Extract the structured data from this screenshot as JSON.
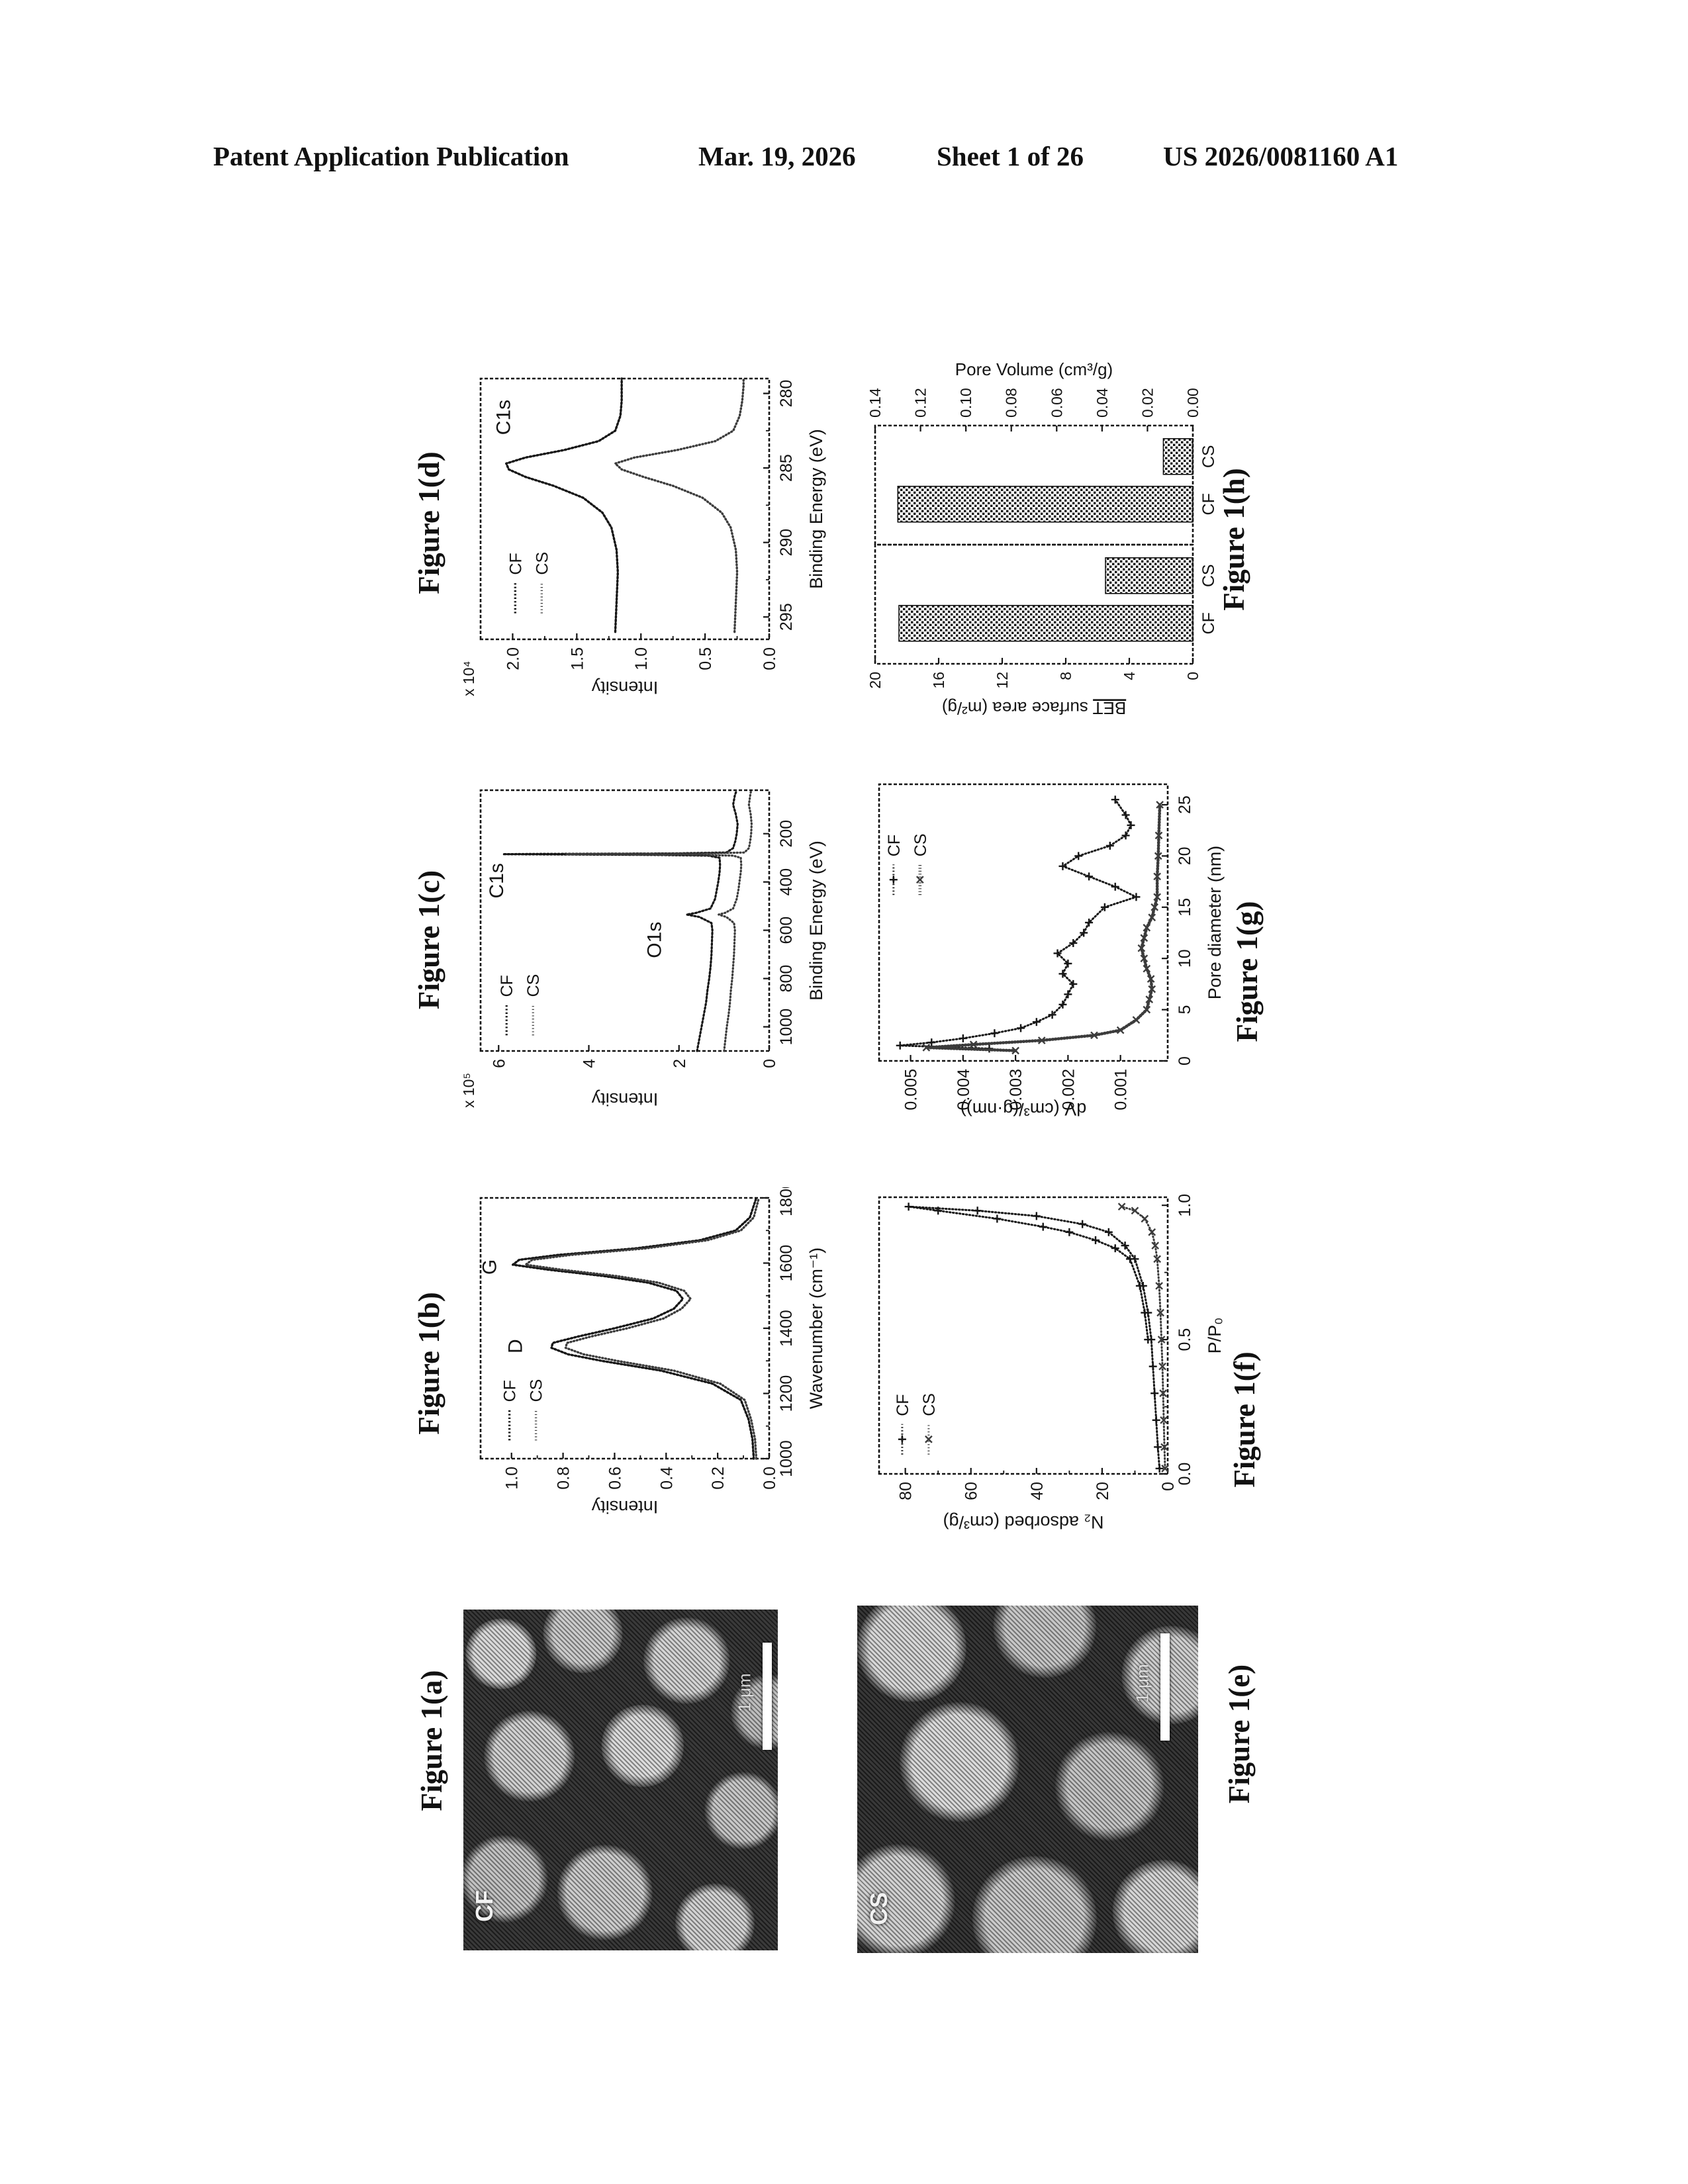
{
  "header": {
    "left": "Patent Application Publication",
    "date": "Mar. 19, 2026",
    "sheet": "Sheet 1 of 26",
    "patent_no": "US 2026/0081160 A1"
  },
  "captions": {
    "a": "Figure 1(a)",
    "b": "Figure 1(b)",
    "c": "Figure 1(c)",
    "d": "Figure 1(d)",
    "e": "Figure 1(e)",
    "f": "Figure 1(f)",
    "g": "Figure 1(g)",
    "h": "Figure 1(h)"
  },
  "sem": {
    "a": {
      "label": "CF",
      "scalebar": "1 μm"
    },
    "e": {
      "label": "CS",
      "scalebar": "1 μm"
    }
  },
  "ink": "#141414",
  "chart_data": [
    {
      "id": "figure-1b",
      "type": "line",
      "xlabel": "Wavenumber (cm⁻¹)",
      "ylabel": "Intensity",
      "xlim": [
        1000,
        1800
      ],
      "ylim": [
        0,
        1.12
      ],
      "x_reversed": false,
      "x_ticks": [
        [
          1000,
          "1000"
        ],
        [
          1200,
          "1200"
        ],
        [
          1400,
          "1400"
        ],
        [
          1600,
          "1600"
        ],
        [
          1800,
          "1800"
        ]
      ],
      "y_ticks": [
        [
          0,
          "0.0"
        ],
        [
          0.2,
          "0.2"
        ],
        [
          0.4,
          "0.4"
        ],
        [
          0.6,
          "0.6"
        ],
        [
          0.8,
          "0.8"
        ],
        [
          1.0,
          "1.0"
        ]
      ],
      "x_minor": true,
      "y_minor": true,
      "scale_label": "",
      "legend": {
        "x": 0.07,
        "y": 0.1,
        "items": [
          {
            "series": 0,
            "label": "CF"
          },
          {
            "series": 1,
            "label": "CS"
          }
        ]
      },
      "annotations": [
        {
          "text": "D",
          "x": 1345,
          "y": 0.96
        },
        {
          "text": "G",
          "x": 1588,
          "y": 1.06
        }
      ],
      "series": [
        {
          "name": "CF",
          "dash": "2.2 3.2",
          "width": 3.4,
          "color": "#161616",
          "marker": "",
          "x": [
            1000,
            1060,
            1120,
            1180,
            1230,
            1270,
            1300,
            1320,
            1340,
            1355,
            1375,
            1400,
            1430,
            1460,
            1490,
            1515,
            1540,
            1560,
            1580,
            1595,
            1610,
            1625,
            1645,
            1670,
            1700,
            1740,
            1800
          ],
          "y": [
            0.06,
            0.065,
            0.08,
            0.11,
            0.22,
            0.42,
            0.65,
            0.78,
            0.845,
            0.84,
            0.74,
            0.6,
            0.45,
            0.37,
            0.335,
            0.36,
            0.47,
            0.64,
            0.86,
            0.995,
            0.97,
            0.82,
            0.52,
            0.27,
            0.13,
            0.075,
            0.05
          ]
        },
        {
          "name": "CS",
          "dash": "1.2 3.6",
          "width": 3.4,
          "color": "#3c3c3c",
          "marker": "",
          "x": [
            1000,
            1060,
            1120,
            1180,
            1230,
            1270,
            1300,
            1320,
            1340,
            1355,
            1375,
            1400,
            1430,
            1460,
            1490,
            1515,
            1540,
            1560,
            1580,
            1595,
            1610,
            1625,
            1645,
            1670,
            1700,
            1740,
            1800
          ],
          "y": [
            0.05,
            0.055,
            0.07,
            0.095,
            0.19,
            0.37,
            0.59,
            0.72,
            0.79,
            0.785,
            0.69,
            0.55,
            0.41,
            0.34,
            0.305,
            0.33,
            0.43,
            0.59,
            0.81,
            0.945,
            0.92,
            0.77,
            0.48,
            0.24,
            0.11,
            0.06,
            0.04
          ]
        }
      ]
    },
    {
      "id": "figure-1c",
      "type": "line",
      "xlabel": "Binding Energy (eV)",
      "ylabel": "Intensity",
      "xlim": [
        20,
        1100
      ],
      "ylim": [
        0,
        6.4
      ],
      "x_reversed": true,
      "x_ticks": [
        [
          1000,
          "1000"
        ],
        [
          800,
          "800"
        ],
        [
          600,
          "600"
        ],
        [
          400,
          "400"
        ],
        [
          200,
          "200"
        ]
      ],
      "y_ticks": [
        [
          0,
          "0"
        ],
        [
          2,
          "2"
        ],
        [
          4,
          "4"
        ],
        [
          6,
          "6"
        ]
      ],
      "x_minor": false,
      "y_minor": false,
      "scale_label": "x 10⁵",
      "legend": {
        "x": 0.06,
        "y": 0.09,
        "items": [
          {
            "series": 0,
            "label": "CF"
          },
          {
            "series": 1,
            "label": "CS"
          }
        ]
      },
      "annotations": [
        {
          "text": "O1s",
          "x": 640,
          "y": 2.4
        },
        {
          "text": "C1s",
          "x": 395,
          "y": 5.9
        }
      ],
      "series": [
        {
          "name": "CF",
          "dash": "2.2 3.2",
          "width": 3.2,
          "color": "#161616",
          "marker": "",
          "x": [
            1100,
            1050,
            1000,
            950,
            900,
            850,
            800,
            750,
            700,
            650,
            600,
            570,
            545,
            535,
            528,
            510,
            470,
            430,
            400,
            360,
            330,
            300,
            291,
            288,
            286,
            285,
            284,
            282,
            278,
            260,
            230,
            200,
            160,
            120,
            80,
            40,
            20
          ],
          "y": [
            1.6,
            1.55,
            1.5,
            1.45,
            1.4,
            1.37,
            1.33,
            1.3,
            1.28,
            1.27,
            1.26,
            1.28,
            1.55,
            1.83,
            1.62,
            1.3,
            1.2,
            1.16,
            1.13,
            1.1,
            1.09,
            1.1,
            1.35,
            2.6,
            4.8,
            5.9,
            5.2,
            2.2,
            0.95,
            0.8,
            0.75,
            0.72,
            0.7,
            0.74,
            0.8,
            0.76,
            0.72
          ]
        },
        {
          "name": "CS",
          "dash": "1.2 3.6",
          "width": 3.2,
          "color": "#3c3c3c",
          "marker": "",
          "x": [
            1100,
            1050,
            1000,
            950,
            900,
            850,
            800,
            750,
            700,
            650,
            600,
            570,
            545,
            535,
            528,
            510,
            470,
            430,
            400,
            360,
            330,
            300,
            291,
            288,
            286,
            285,
            284,
            282,
            278,
            260,
            230,
            200,
            160,
            120,
            80,
            40,
            20
          ],
          "y": [
            1.0,
            0.97,
            0.94,
            0.9,
            0.87,
            0.85,
            0.82,
            0.8,
            0.78,
            0.77,
            0.76,
            0.78,
            0.95,
            1.12,
            0.98,
            0.8,
            0.72,
            0.68,
            0.66,
            0.63,
            0.62,
            0.63,
            0.8,
            1.7,
            3.4,
            4.5,
            3.8,
            1.4,
            0.55,
            0.45,
            0.42,
            0.4,
            0.39,
            0.41,
            0.45,
            0.42,
            0.4
          ]
        }
      ]
    },
    {
      "id": "figure-1d",
      "type": "line",
      "xlabel": "Binding Energy (eV)",
      "ylabel": "Intensity",
      "xlim": [
        279,
        296.5
      ],
      "ylim": [
        0,
        2.25
      ],
      "x_reversed": true,
      "x_ticks": [
        [
          295,
          "295"
        ],
        [
          290,
          "290"
        ],
        [
          285,
          "285"
        ],
        [
          280,
          "280"
        ]
      ],
      "y_ticks": [
        [
          0,
          "0.0"
        ],
        [
          0.5,
          "0.5"
        ],
        [
          1.0,
          "1.0"
        ],
        [
          1.5,
          "1.5"
        ],
        [
          2.0,
          "2.0"
        ]
      ],
      "x_minor": true,
      "y_minor": true,
      "scale_label": "x 10⁴",
      "legend": {
        "x": 0.1,
        "y": 0.12,
        "items": [
          {
            "series": 0,
            "label": "CF"
          },
          {
            "series": 1,
            "label": "CS"
          }
        ]
      },
      "annotations": [
        {
          "text": "C1s",
          "x": 281.6,
          "y": 2.02
        }
      ],
      "series": [
        {
          "name": "CF",
          "dash": "2.2 3.2",
          "width": 3.4,
          "color": "#161616",
          "marker": "",
          "x": [
            296,
            294,
            292,
            290.5,
            289,
            288,
            287,
            286.2,
            285.6,
            285.1,
            284.7,
            284.3,
            283.8,
            283.2,
            282.5,
            281.5,
            280.5,
            279.5,
            279
          ],
          "y": [
            1.2,
            1.19,
            1.18,
            1.19,
            1.23,
            1.3,
            1.45,
            1.68,
            1.9,
            2.03,
            2.05,
            1.9,
            1.6,
            1.33,
            1.2,
            1.16,
            1.15,
            1.15,
            1.15
          ]
        },
        {
          "name": "CS",
          "dash": "1.2 3.6",
          "width": 3.4,
          "color": "#3c3c3c",
          "marker": "",
          "x": [
            296,
            294,
            292,
            290.5,
            289,
            288,
            287,
            286.2,
            285.6,
            285.1,
            284.7,
            284.3,
            283.8,
            283.2,
            282.5,
            281.5,
            280.5,
            279.5,
            279
          ],
          "y": [
            0.27,
            0.26,
            0.25,
            0.26,
            0.3,
            0.37,
            0.52,
            0.75,
            0.98,
            1.15,
            1.2,
            1.05,
            0.72,
            0.42,
            0.28,
            0.23,
            0.21,
            0.2,
            0.2
          ]
        }
      ]
    },
    {
      "id": "figure-1f",
      "type": "line",
      "xlabel": "P/P₀",
      "ylabel": "N₂ adsorbed (cm³/g)",
      "xlim": [
        0,
        1.03
      ],
      "ylim": [
        0,
        88
      ],
      "x_reversed": false,
      "x_ticks": [
        [
          0,
          "0.0"
        ],
        [
          0.5,
          "0.5"
        ],
        [
          1.0,
          "1.0"
        ]
      ],
      "y_ticks": [
        [
          0,
          "0"
        ],
        [
          20,
          "20"
        ],
        [
          40,
          "40"
        ],
        [
          60,
          "60"
        ],
        [
          80,
          "80"
        ]
      ],
      "x_minor": true,
      "y_minor": true,
      "scale_label": "",
      "legend": {
        "x": 0.07,
        "y": 0.08,
        "items": [
          {
            "series": 0,
            "label": "CF"
          },
          {
            "series": 1,
            "label": "CS"
          }
        ]
      },
      "annotations": [],
      "series": [
        {
          "name": "CF",
          "dash": "1.6 3.4",
          "width": 3,
          "color": "#161616",
          "marker": "plus",
          "x": [
            0.02,
            0.1,
            0.2,
            0.3,
            0.4,
            0.5,
            0.6,
            0.7,
            0.8,
            0.85,
            0.9,
            0.93,
            0.96,
            0.98,
            0.995,
            0.98,
            0.95,
            0.92,
            0.9,
            0.87,
            0.84,
            0.8,
            0.7,
            0.6,
            0.5
          ],
          "y": [
            2.5,
            3,
            3.5,
            4,
            4.5,
            5,
            6,
            7.5,
            10,
            13,
            18,
            26,
            40,
            58,
            79,
            70,
            52,
            38,
            30,
            22,
            16,
            11.5,
            8.5,
            7,
            6
          ]
        },
        {
          "name": "CS",
          "dash": "1.2 3.6",
          "width": 3,
          "color": "#3c3c3c",
          "marker": "x",
          "x": [
            0.02,
            0.1,
            0.2,
            0.3,
            0.4,
            0.5,
            0.6,
            0.7,
            0.8,
            0.85,
            0.9,
            0.95,
            0.98,
            0.995
          ],
          "y": [
            0.8,
            1,
            1.2,
            1.4,
            1.6,
            1.9,
            2.2,
            2.6,
            3.2,
            3.8,
            4.8,
            7,
            10,
            14
          ]
        }
      ]
    },
    {
      "id": "figure-1g",
      "type": "line",
      "xlabel": "Pore diameter (nm)",
      "ylabel": "dV (cm³/(g·nm))",
      "xlim": [
        0,
        27
      ],
      "ylim": [
        0.0001,
        0.0056
      ],
      "x_reversed": false,
      "x_ticks": [
        [
          0,
          "0"
        ],
        [
          5,
          "5"
        ],
        [
          10,
          "10"
        ],
        [
          15,
          "15"
        ],
        [
          20,
          "20"
        ],
        [
          25,
          "25"
        ]
      ],
      "y_ticks": [
        [
          0.001,
          "0.001"
        ],
        [
          0.002,
          "0.002"
        ],
        [
          0.003,
          "0.003"
        ],
        [
          0.004,
          "0.004"
        ],
        [
          0.005,
          "0.005"
        ]
      ],
      "x_minor": false,
      "y_minor": false,
      "scale_label": "",
      "legend": {
        "x": 0.6,
        "y": 0.05,
        "items": [
          {
            "series": 0,
            "label": "CF"
          },
          {
            "series": 1,
            "label": "CS"
          }
        ]
      },
      "annotations": [],
      "series": [
        {
          "name": "CF",
          "dash": "1.6 3.4",
          "width": 3,
          "color": "#161616",
          "marker": "plus",
          "x": [
            1.2,
            1.5,
            1.8,
            2.2,
            2.7,
            3.2,
            3.8,
            4.5,
            5.5,
            6.5,
            7.5,
            8.5,
            9.5,
            10.5,
            11.5,
            12.5,
            13.5,
            15,
            16,
            17,
            18,
            19,
            20,
            21,
            22,
            23,
            24,
            25.5
          ],
          "y": [
            0.0035,
            0.0052,
            0.0046,
            0.004,
            0.0034,
            0.0029,
            0.0026,
            0.0023,
            0.0021,
            0.002,
            0.0019,
            0.0021,
            0.002,
            0.0022,
            0.0019,
            0.0017,
            0.0016,
            0.0013,
            0.0007,
            0.0011,
            0.0016,
            0.0021,
            0.0018,
            0.0012,
            0.0009,
            0.0008,
            0.0009,
            0.0011
          ]
        },
        {
          "name": "CS",
          "dash": "1.2 3.2",
          "width": 4.6,
          "color": "#3c3c3c",
          "marker": "x",
          "x": [
            1.0,
            1.3,
            1.6,
            2.0,
            2.5,
            3,
            4,
            5,
            6,
            7,
            8,
            9,
            10,
            11,
            12,
            13,
            14,
            15,
            16,
            18,
            20,
            22,
            25
          ],
          "y": [
            0.003,
            0.0047,
            0.0038,
            0.0025,
            0.0015,
            0.001,
            0.0007,
            0.0005,
            0.00045,
            0.0004,
            0.00042,
            0.0005,
            0.00055,
            0.0006,
            0.00055,
            0.0005,
            0.0004,
            0.00035,
            0.0003,
            0.0003,
            0.00028,
            0.00027,
            0.00025
          ]
        }
      ]
    },
    {
      "id": "figure-1h",
      "type": "bar-dual",
      "panels": [
        {
          "ylabel_u": "BET",
          "ylabel_rest": " surface area (m²/g)",
          "side": "left",
          "ylim": [
            0,
            20
          ],
          "y_ticks": [
            [
              0,
              "0"
            ],
            [
              4,
              "4"
            ],
            [
              8,
              "8"
            ],
            [
              12,
              "12"
            ],
            [
              16,
              "16"
            ],
            [
              20,
              "20"
            ]
          ],
          "categories": [
            "CF",
            "CS"
          ],
          "values": [
            18.5,
            5.5
          ]
        },
        {
          "ylabel_u": "",
          "ylabel_rest": "Pore Volume (cm³/g)",
          "side": "right",
          "ylim": [
            0,
            0.14
          ],
          "y_ticks": [
            [
              0,
              "0.00"
            ],
            [
              0.02,
              "0.02"
            ],
            [
              0.04,
              "0.04"
            ],
            [
              0.06,
              "0.06"
            ],
            [
              0.08,
              "0.08"
            ],
            [
              0.1,
              "0.10"
            ],
            [
              0.12,
              "0.12"
            ],
            [
              0.14,
              "0.14"
            ]
          ],
          "categories": [
            "CF",
            "CS"
          ],
          "values": [
            0.13,
            0.013
          ]
        }
      ]
    }
  ]
}
